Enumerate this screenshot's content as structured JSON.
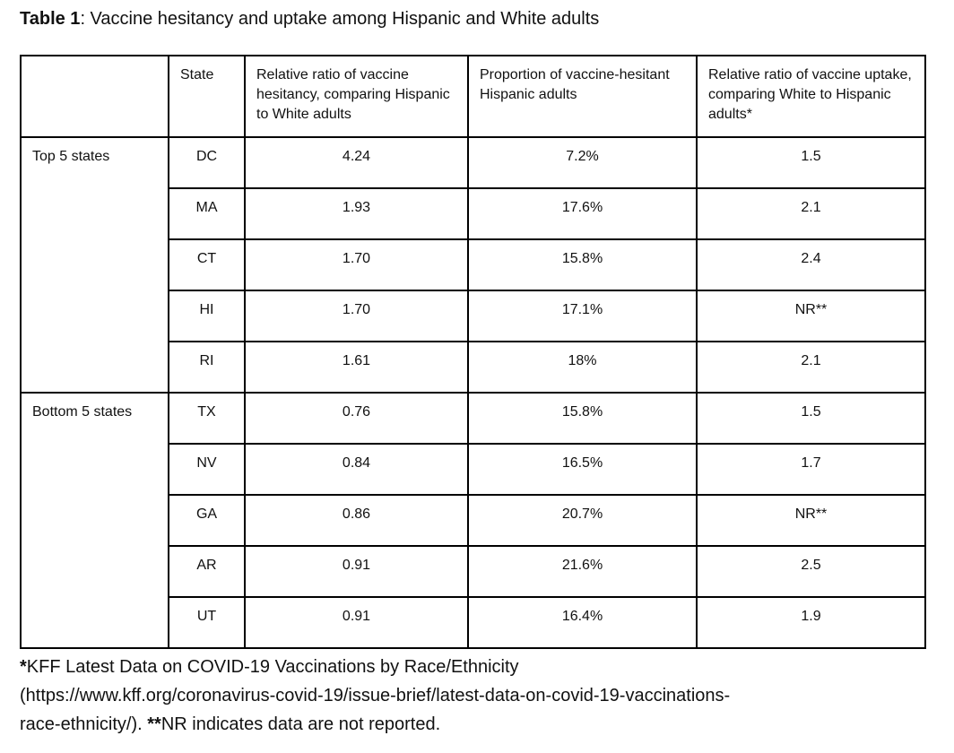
{
  "title": {
    "label_bold": "Table 1",
    "label_rest": ": Vaccine hesitancy and uptake among Hispanic and White adults"
  },
  "table": {
    "columns": [
      "",
      "State",
      "Relative ratio of vaccine hesitancy, comparing Hispanic to White adults",
      "Proportion of vaccine-hesitant Hispanic adults",
      "Relative ratio of vaccine uptake, comparing White to Hispanic adults*"
    ],
    "groups": [
      {
        "label": "Top 5 states",
        "rows": [
          {
            "state": "DC",
            "hesitancy_ratio": "4.24",
            "hesitant_proportion": "7.2%",
            "uptake_ratio": "1.5"
          },
          {
            "state": "MA",
            "hesitancy_ratio": "1.93",
            "hesitant_proportion": "17.6%",
            "uptake_ratio": "2.1"
          },
          {
            "state": "CT",
            "hesitancy_ratio": "1.70",
            "hesitant_proportion": "15.8%",
            "uptake_ratio": "2.4"
          },
          {
            "state": "HI",
            "hesitancy_ratio": "1.70",
            "hesitant_proportion": "17.1%",
            "uptake_ratio": "NR**"
          },
          {
            "state": "RI",
            "hesitancy_ratio": "1.61",
            "hesitant_proportion": "18%",
            "uptake_ratio": "2.1"
          }
        ]
      },
      {
        "label": "Bottom 5 states",
        "rows": [
          {
            "state": "TX",
            "hesitancy_ratio": "0.76",
            "hesitant_proportion": "15.8%",
            "uptake_ratio": "1.5"
          },
          {
            "state": "NV",
            "hesitancy_ratio": "0.84",
            "hesitant_proportion": "16.5%",
            "uptake_ratio": "1.7"
          },
          {
            "state": "GA",
            "hesitancy_ratio": "0.86",
            "hesitant_proportion": "20.7%",
            "uptake_ratio": "NR**"
          },
          {
            "state": "AR",
            "hesitancy_ratio": "0.91",
            "hesitant_proportion": "21.6%",
            "uptake_ratio": "2.5"
          },
          {
            "state": "UT",
            "hesitancy_ratio": "0.91",
            "hesitant_proportion": "16.4%",
            "uptake_ratio": "1.9"
          }
        ]
      }
    ]
  },
  "footnotes": {
    "marker1": "*",
    "line1_rest": "KFF Latest Data on COVID-19 Vaccinations by Race/Ethnicity",
    "line2": "(https://www.kff.org/coronavirus-covid-19/issue-brief/latest-data-on-covid-19-vaccinations-",
    "line3_start": "race-ethnicity/). ",
    "marker2": "**",
    "line3_rest": "NR indicates data are not reported."
  }
}
